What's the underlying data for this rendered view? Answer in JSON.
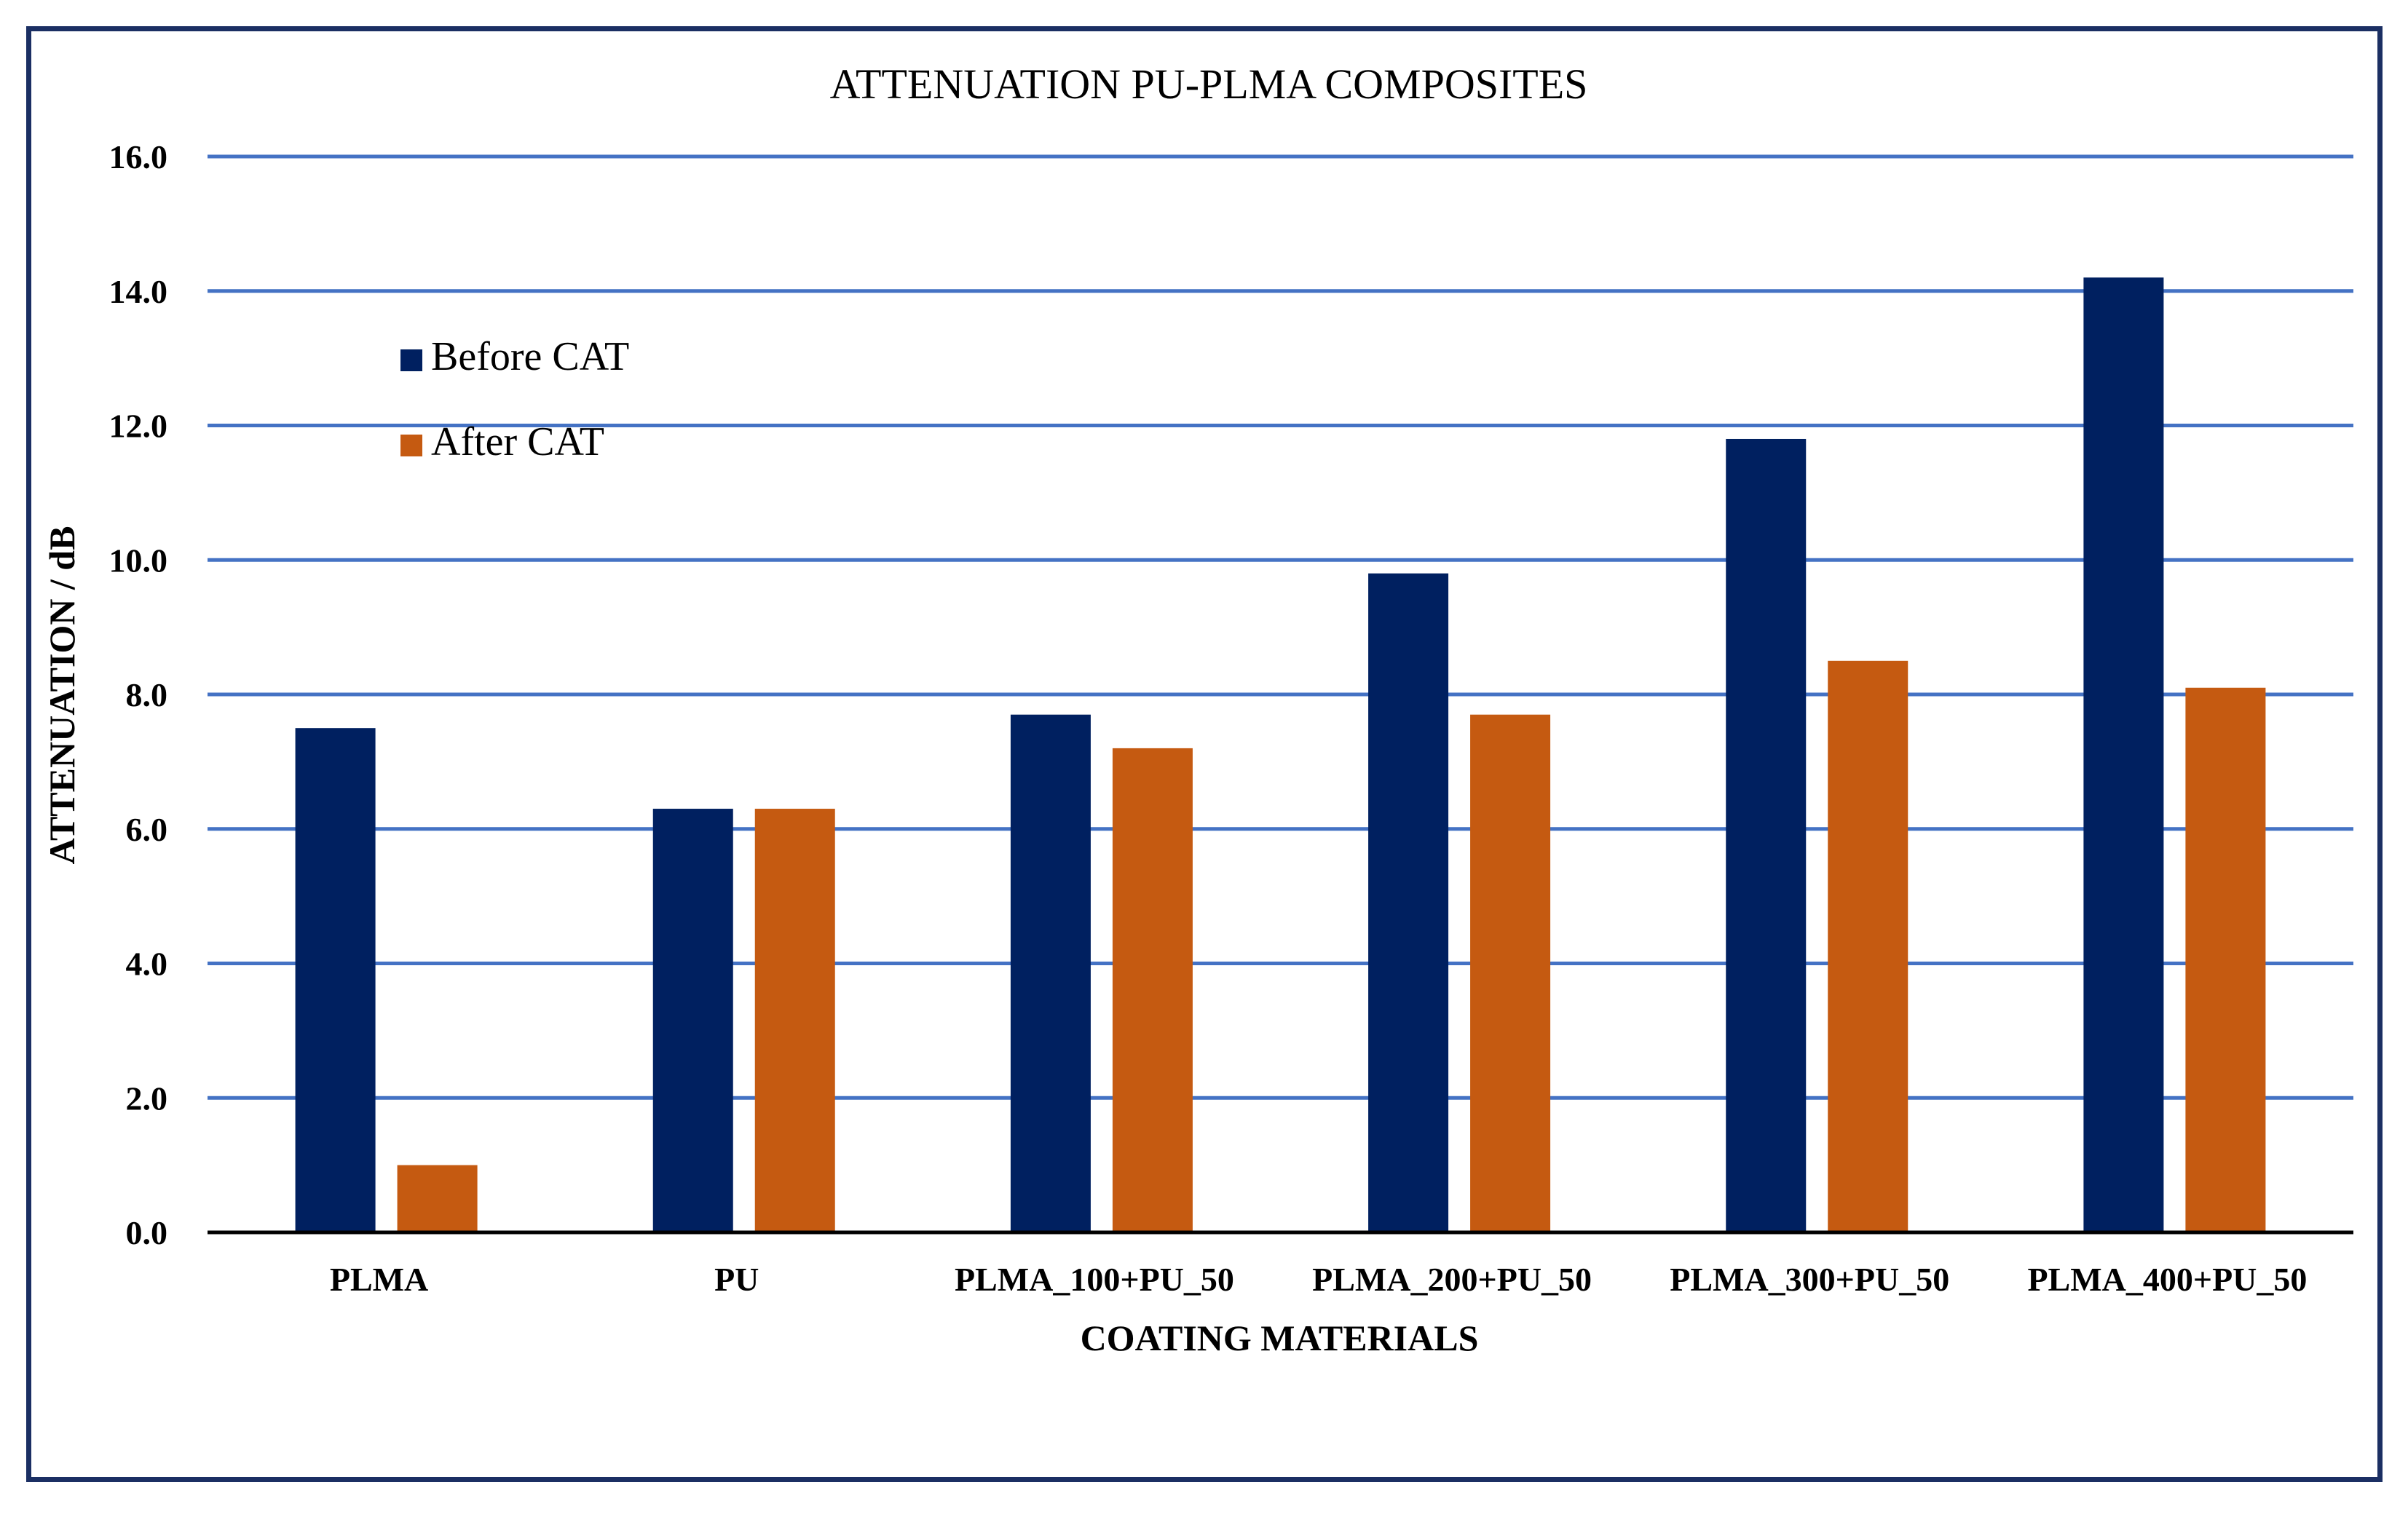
{
  "chart_data": {
    "type": "bar",
    "title": "ATTENUATION PU-PLMA COMPOSITES",
    "xlabel": "COATING MATERIALS",
    "ylabel": "ATTENUATION / dB",
    "ylim": [
      0,
      16
    ],
    "yticks": [
      "0.0",
      "2.0",
      "4.0",
      "6.0",
      "8.0",
      "10.0",
      "12.0",
      "14.0",
      "16.0"
    ],
    "grid": true,
    "legend_position": "upper-left",
    "categories": [
      "PLMA",
      "PU",
      "PLMA_100+PU_50",
      "PLMA_200+PU_50",
      "PLMA_300+PU_50",
      "PLMA_400+PU_50"
    ],
    "series": [
      {
        "name": "Before CAT",
        "color": "#002060",
        "values": [
          7.5,
          6.3,
          7.7,
          9.8,
          11.8,
          14.2
        ]
      },
      {
        "name": "After CAT",
        "color": "#c55a11",
        "values": [
          1.0,
          6.3,
          7.2,
          7.7,
          8.5,
          8.1
        ]
      }
    ],
    "colors": {
      "grid": "#4472c4",
      "axis": "#000000",
      "frame": "#1b2f63"
    }
  }
}
